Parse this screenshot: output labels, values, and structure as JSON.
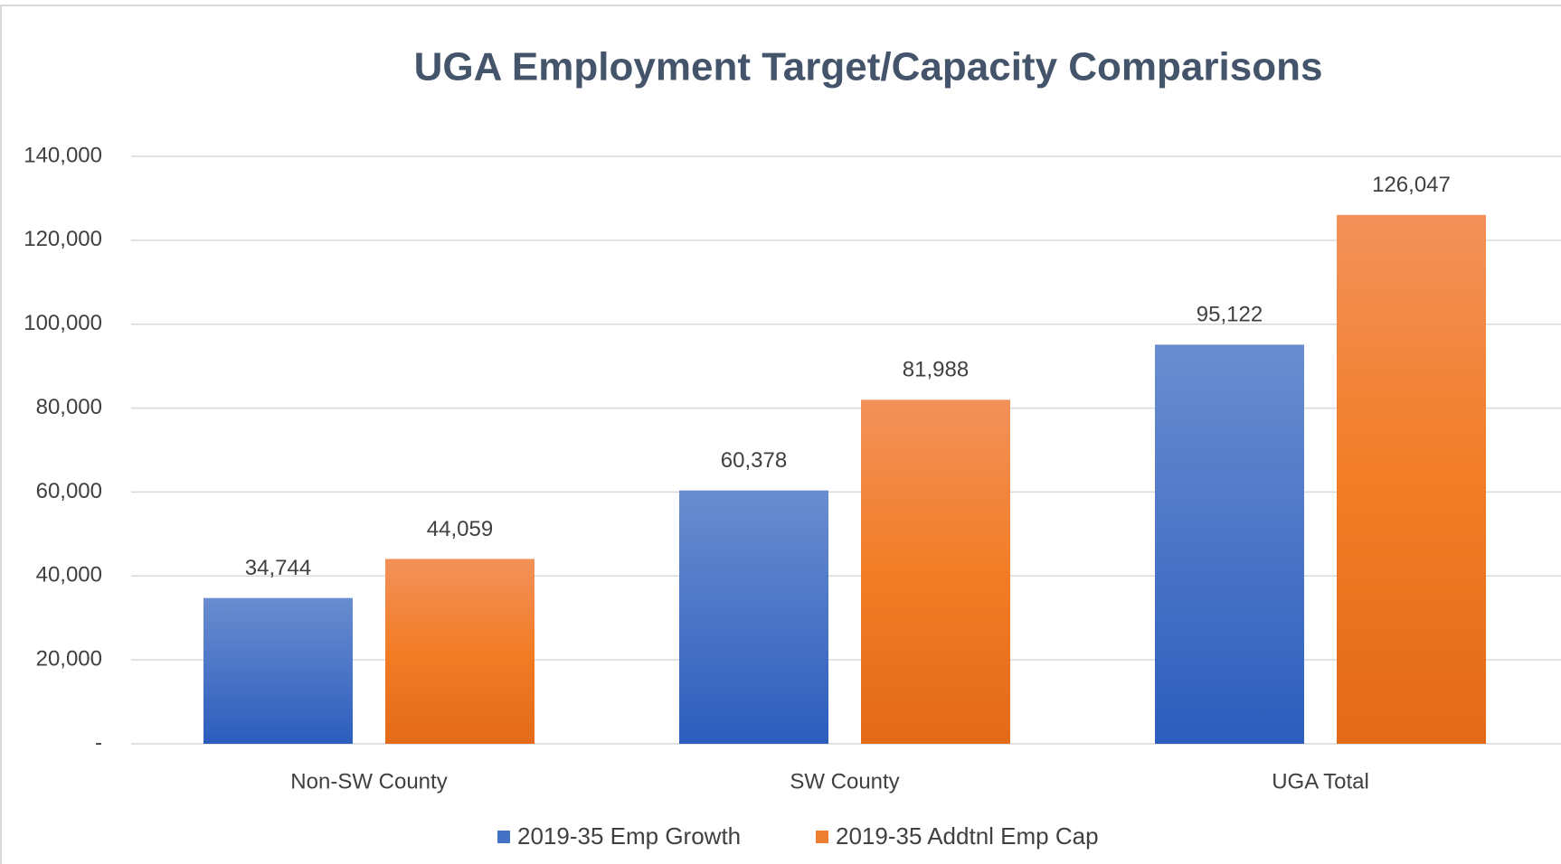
{
  "chart_data": {
    "type": "bar",
    "title": "UGA Employment  Target/Capacity  Comparisons",
    "categories": [
      "Non-SW County",
      "SW County",
      "UGA Total"
    ],
    "series": [
      {
        "name": "2019-35 Emp Growth",
        "color": "#4472c4",
        "values": [
          34744,
          60378,
          95122
        ],
        "value_labels": [
          "34,744",
          "60,378",
          "95,122"
        ]
      },
      {
        "name": "2019-35 Addtnl Emp Cap",
        "color": "#ed7d31",
        "values": [
          44059,
          81988,
          126047
        ],
        "value_labels": [
          "44,059",
          "81,988",
          "126,047"
        ]
      }
    ],
    "ylim": [
      0,
      140000
    ],
    "yticks": [
      {
        "value": 0,
        "label": "-"
      },
      {
        "value": 20000,
        "label": "20,000"
      },
      {
        "value": 40000,
        "label": "40,000"
      },
      {
        "value": 60000,
        "label": "60,000"
      },
      {
        "value": 80000,
        "label": "80,000"
      },
      {
        "value": 100000,
        "label": "100,000"
      },
      {
        "value": 120000,
        "label": "120,000"
      },
      {
        "value": 140000,
        "label": "140,000"
      }
    ],
    "grid": true,
    "legend": "bottom"
  }
}
